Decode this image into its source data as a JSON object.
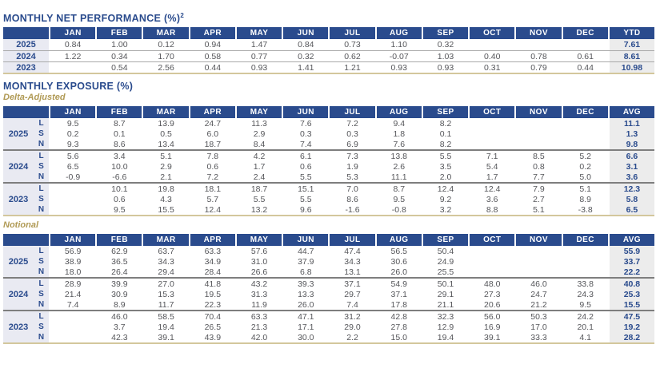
{
  "colors": {
    "navy": "#2a4b8d",
    "gold_accent": "#b09a55",
    "label_bg": "#e9eaf2",
    "total_col_bg": "#ececec",
    "data_text": "#55565a",
    "table_bottom_line": "#d3c79c"
  },
  "months": [
    "JAN",
    "FEB",
    "MAR",
    "APR",
    "MAY",
    "JUN",
    "JUL",
    "AUG",
    "SEP",
    "OCT",
    "NOV",
    "DEC"
  ],
  "performance": {
    "title": "MONTHLY NET PERFORMANCE (%)",
    "title_superscript": "2",
    "total_label": "YTD",
    "rows": [
      {
        "year": "2025",
        "values": [
          "0.84",
          "1.00",
          "0.12",
          "0.94",
          "1.47",
          "0.84",
          "0.73",
          "1.10",
          "0.32",
          "",
          "",
          ""
        ],
        "total": "7.61"
      },
      {
        "year": "2024",
        "values": [
          "1.22",
          "0.34",
          "1.70",
          "0.58",
          "0.77",
          "0.32",
          "0.62",
          "-0.07",
          "1.03",
          "0.40",
          "0.78",
          "0.61"
        ],
        "total": "8.61"
      },
      {
        "year": "2023",
        "values": [
          "",
          "0.54",
          "2.56",
          "0.44",
          "0.93",
          "1.41",
          "1.21",
          "0.93",
          "0.93",
          "0.31",
          "0.79",
          "0.44"
        ],
        "total": "10.98"
      }
    ]
  },
  "exposure": {
    "title": "MONTHLY EXPOSURE (%)",
    "total_label": "AVG",
    "sections": [
      {
        "label": "Delta-Adjusted",
        "groups": [
          {
            "year": "2025",
            "rows": [
              {
                "side": "L",
                "values": [
                  "9.5",
                  "8.7",
                  "13.9",
                  "24.7",
                  "11.3",
                  "7.6",
                  "7.2",
                  "9.4",
                  "8.2",
                  "",
                  "",
                  ""
                ],
                "avg": "11.1"
              },
              {
                "side": "S",
                "values": [
                  "0.2",
                  "0.1",
                  "0.5",
                  "6.0",
                  "2.9",
                  "0.3",
                  "0.3",
                  "1.8",
                  "0.1",
                  "",
                  "",
                  ""
                ],
                "avg": "1.3"
              },
              {
                "side": "N",
                "values": [
                  "9.3",
                  "8.6",
                  "13.4",
                  "18.7",
                  "8.4",
                  "7.4",
                  "6.9",
                  "7.6",
                  "8.2",
                  "",
                  "",
                  ""
                ],
                "avg": "9.8"
              }
            ]
          },
          {
            "year": "2024",
            "rows": [
              {
                "side": "L",
                "values": [
                  "5.6",
                  "3.4",
                  "5.1",
                  "7.8",
                  "4.2",
                  "6.1",
                  "7.3",
                  "13.8",
                  "5.5",
                  "7.1",
                  "8.5",
                  "5.2"
                ],
                "avg": "6.6"
              },
              {
                "side": "S",
                "values": [
                  "6.5",
                  "10.0",
                  "2.9",
                  "0.6",
                  "1.7",
                  "0.6",
                  "1.9",
                  "2.6",
                  "3.5",
                  "5.4",
                  "0.8",
                  "0.2"
                ],
                "avg": "3.1"
              },
              {
                "side": "N",
                "values": [
                  "-0.9",
                  "-6.6",
                  "2.1",
                  "7.2",
                  "2.4",
                  "5.5",
                  "5.3",
                  "11.1",
                  "2.0",
                  "1.7",
                  "7.7",
                  "5.0"
                ],
                "avg": "3.6"
              }
            ]
          },
          {
            "year": "2023",
            "rows": [
              {
                "side": "L",
                "values": [
                  "",
                  "10.1",
                  "19.8",
                  "18.1",
                  "18.7",
                  "15.1",
                  "7.0",
                  "8.7",
                  "12.4",
                  "12.4",
                  "7.9",
                  "5.1"
                ],
                "avg": "12.3"
              },
              {
                "side": "S",
                "values": [
                  "",
                  "0.6",
                  "4.3",
                  "5.7",
                  "5.5",
                  "5.5",
                  "8.6",
                  "9.5",
                  "9.2",
                  "3.6",
                  "2.7",
                  "8.9"
                ],
                "avg": "5.8"
              },
              {
                "side": "N",
                "values": [
                  "",
                  "9.5",
                  "15.5",
                  "12.4",
                  "13.2",
                  "9.6",
                  "-1.6",
                  "-0.8",
                  "3.2",
                  "8.8",
                  "5.1",
                  "-3.8"
                ],
                "avg": "6.5"
              }
            ]
          }
        ]
      },
      {
        "label": "Notional",
        "groups": [
          {
            "year": "2025",
            "rows": [
              {
                "side": "L",
                "values": [
                  "56.9",
                  "62.9",
                  "63.7",
                  "63.3",
                  "57.6",
                  "44.7",
                  "47.4",
                  "56.5",
                  "50.4",
                  "",
                  "",
                  ""
                ],
                "avg": "55.9"
              },
              {
                "side": "S",
                "values": [
                  "38.9",
                  "36.5",
                  "34.3",
                  "34.9",
                  "31.0",
                  "37.9",
                  "34.3",
                  "30.6",
                  "24.9",
                  "",
                  "",
                  ""
                ],
                "avg": "33.7"
              },
              {
                "side": "N",
                "values": [
                  "18.0",
                  "26.4",
                  "29.4",
                  "28.4",
                  "26.6",
                  "6.8",
                  "13.1",
                  "26.0",
                  "25.5",
                  "",
                  "",
                  ""
                ],
                "avg": "22.2"
              }
            ]
          },
          {
            "year": "2024",
            "rows": [
              {
                "side": "L",
                "values": [
                  "28.9",
                  "39.9",
                  "27.0",
                  "41.8",
                  "43.2",
                  "39.3",
                  "37.1",
                  "54.9",
                  "50.1",
                  "48.0",
                  "46.0",
                  "33.8"
                ],
                "avg": "40.8"
              },
              {
                "side": "S",
                "values": [
                  "21.4",
                  "30.9",
                  "15.3",
                  "19.5",
                  "31.3",
                  "13.3",
                  "29.7",
                  "37.1",
                  "29.1",
                  "27.3",
                  "24.7",
                  "24.3"
                ],
                "avg": "25.3"
              },
              {
                "side": "N",
                "values": [
                  "7.4",
                  "8.9",
                  "11.7",
                  "22.3",
                  "11.9",
                  "26.0",
                  "7.4",
                  "17.8",
                  "21.1",
                  "20.6",
                  "21.2",
                  "9.5"
                ],
                "avg": "15.5"
              }
            ]
          },
          {
            "year": "2023",
            "rows": [
              {
                "side": "L",
                "values": [
                  "",
                  "46.0",
                  "58.5",
                  "70.4",
                  "63.3",
                  "47.1",
                  "31.2",
                  "42.8",
                  "32.3",
                  "56.0",
                  "50.3",
                  "24.2"
                ],
                "avg": "47.5"
              },
              {
                "side": "S",
                "values": [
                  "",
                  "3.7",
                  "19.4",
                  "26.5",
                  "21.3",
                  "17.1",
                  "29.0",
                  "27.8",
                  "12.9",
                  "16.9",
                  "17.0",
                  "20.1"
                ],
                "avg": "19.2"
              },
              {
                "side": "N",
                "values": [
                  "",
                  "42.3",
                  "39.1",
                  "43.9",
                  "42.0",
                  "30.0",
                  "2.2",
                  "15.0",
                  "19.4",
                  "39.1",
                  "33.3",
                  "4.1"
                ],
                "avg": "28.2"
              }
            ]
          }
        ]
      }
    ]
  }
}
